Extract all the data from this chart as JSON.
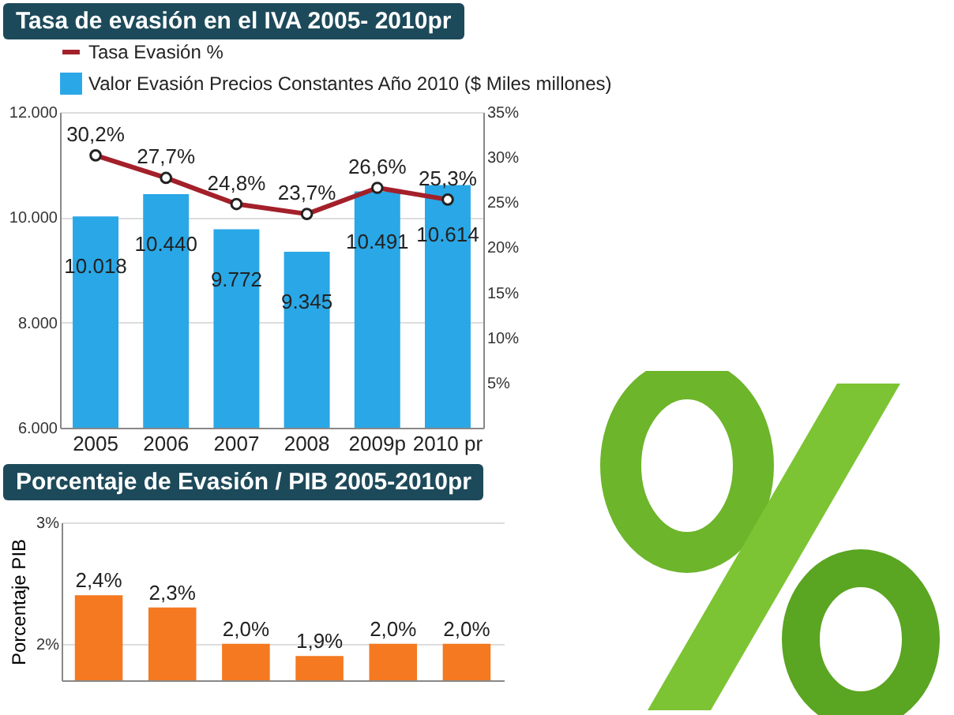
{
  "chart_data": [
    {
      "type": "bar",
      "title": "Tasa de evasión en el IVA 2005- 2010pr",
      "categories": [
        "2005",
        "2006",
        "2007",
        "2008",
        "2009p",
        "2010 pr"
      ],
      "series": [
        {
          "name": "Tasa Evasión %",
          "type": "line",
          "axis": "y2",
          "color": "#a3202a",
          "values": [
            30.2,
            27.7,
            24.8,
            23.7,
            26.6,
            25.3
          ],
          "value_labels": [
            "30,2%",
            "27,7%",
            "24,8%",
            "23,7%",
            "26,6%",
            "25,3%"
          ]
        },
        {
          "name": "Valor Evasión Precios Constantes Año 2010 ($ Miles millones)",
          "color": "#2aa7e6",
          "values": [
            10018,
            10440,
            9772,
            9345,
            10491,
            10614
          ],
          "value_labels": [
            "10.018",
            "10.440",
            "9.772",
            "9.345",
            "10.491",
            "10.614"
          ]
        }
      ],
      "ylim": [
        6000,
        12000
      ],
      "yticks": [
        {
          "value": 6000,
          "label": "6.000"
        },
        {
          "value": 8000,
          "label": "8.000"
        },
        {
          "value": 10000,
          "label": "10.000"
        },
        {
          "value": 12000,
          "label": "12.000"
        }
      ],
      "y2lim": [
        0,
        35
      ],
      "y2ticks": [
        {
          "value": 5,
          "label": "5%"
        },
        {
          "value": 10,
          "label": "10%"
        },
        {
          "value": 15,
          "label": "15%"
        },
        {
          "value": 20,
          "label": "20%"
        },
        {
          "value": 25,
          "label": "25%"
        },
        {
          "value": 30,
          "label": "30%"
        },
        {
          "value": 35,
          "label": "35%"
        }
      ],
      "grid": "y",
      "legend": "top",
      "marker": "circle"
    },
    {
      "type": "bar",
      "title": "Porcentaje de Evasión / PIB 2005-2010pr",
      "ylabel": "Porcentaje PIB",
      "categories": [
        null,
        null,
        null,
        null,
        null,
        null
      ],
      "values": [
        2.4,
        2.3,
        2.0,
        1.9,
        2.0,
        2.0
      ],
      "value_labels": [
        "2,4%",
        "2,3%",
        "2,0%",
        "1,9%",
        "2,0%",
        "2,0%"
      ],
      "color": "#f47920",
      "ylim": [
        1.7,
        3
      ],
      "yticks": [
        {
          "value": 2,
          "label": "2%"
        },
        {
          "value": 3,
          "label": "3%"
        }
      ],
      "grid": "y"
    }
  ]
}
